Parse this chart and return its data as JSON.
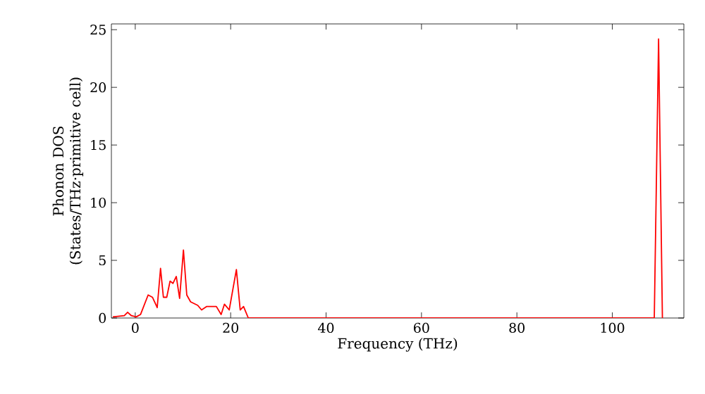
{
  "chart_data": {
    "type": "line",
    "xlabel": "Frequency (THz)",
    "ylabel": "Phonon DOS (States/THz·primitive cell)",
    "xlim": [
      -5,
      115
    ],
    "ylim": [
      0,
      25.5
    ],
    "xticks": [
      0,
      20,
      40,
      60,
      80,
      100
    ],
    "yticks": [
      0,
      5,
      10,
      15,
      20,
      25
    ],
    "grid": false,
    "marker": "none",
    "line_style": "solid",
    "series": [
      {
        "color": "#ff0000",
        "x": [
          -4.7,
          -2.3,
          -1.6,
          -0.8,
          0.2,
          1.1,
          2.7,
          3.6,
          4.6,
          5.3,
          5.9,
          6.6,
          7.3,
          7.9,
          8.6,
          9.3,
          10.1,
          10.8,
          11.6,
          13.1,
          13.9,
          15.0,
          17.0,
          18.0,
          18.7,
          19.7,
          21.2,
          22.0,
          22.7,
          23.7,
          60,
          108.8,
          109.7,
          110.5
        ],
        "values": [
          0.1,
          0.2,
          0.5,
          0.2,
          0.1,
          0.3,
          2.0,
          1.8,
          0.9,
          4.3,
          1.8,
          1.8,
          3.2,
          3.0,
          3.6,
          1.7,
          5.9,
          2.0,
          1.4,
          1.1,
          0.7,
          1.0,
          1.0,
          0.3,
          1.2,
          0.7,
          4.2,
          0.7,
          1.0,
          0,
          0,
          0,
          24.2,
          0
        ]
      }
    ]
  }
}
